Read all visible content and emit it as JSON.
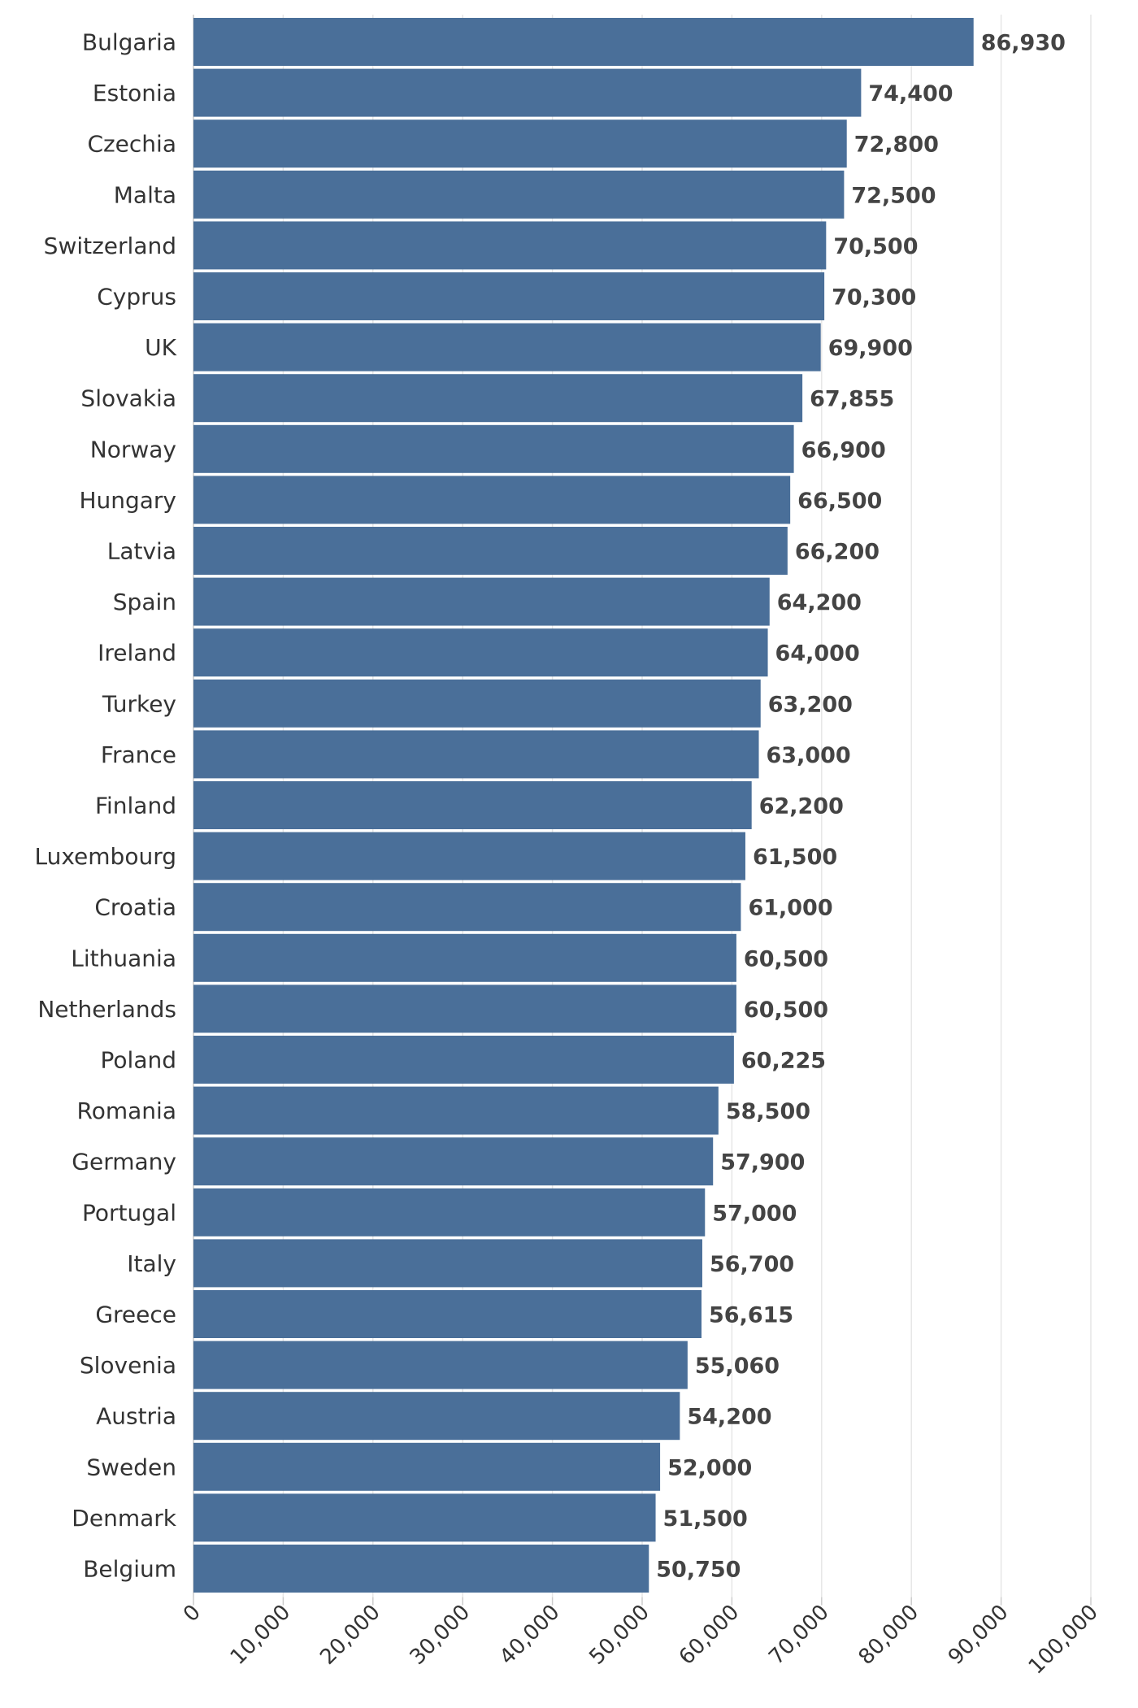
{
  "chart_data": {
    "type": "bar",
    "orientation": "horizontal",
    "title": "",
    "xlabel": "",
    "ylabel": "",
    "xlim": [
      0,
      100000
    ],
    "grid": "vertical",
    "bar_color": "#4a6f99",
    "categories": [
      "Bulgaria",
      "Estonia",
      "Czechia",
      "Malta",
      "Switzerland",
      "Cyprus",
      "UK",
      "Slovakia",
      "Norway",
      "Hungary",
      "Latvia",
      "Spain",
      "Ireland",
      "Turkey",
      "France",
      "Finland",
      "Luxembourg",
      "Croatia",
      "Lithuania",
      "Netherlands",
      "Poland",
      "Romania",
      "Germany",
      "Portugal",
      "Italy",
      "Greece",
      "Slovenia",
      "Austria",
      "Sweden",
      "Denmark",
      "Belgium"
    ],
    "values": [
      86930,
      74400,
      72800,
      72500,
      70500,
      70300,
      69900,
      67855,
      66900,
      66500,
      66200,
      64200,
      64000,
      63200,
      63000,
      62200,
      61500,
      61000,
      60500,
      60500,
      60225,
      58500,
      57900,
      57000,
      56700,
      56615,
      55060,
      54200,
      52000,
      51500,
      50750
    ],
    "value_labels": [
      "86,930",
      "74,400",
      "72,800",
      "72,500",
      "70,500",
      "70,300",
      "69,900",
      "67,855",
      "66,900",
      "66,500",
      "66,200",
      "64,200",
      "64,000",
      "63,200",
      "63,000",
      "62,200",
      "61,500",
      "61,000",
      "60,500",
      "60,500",
      "60,225",
      "58,500",
      "57,900",
      "57,000",
      "56,700",
      "56,615",
      "55,060",
      "54,200",
      "52,000",
      "51,500",
      "50,750"
    ],
    "x_ticks": [
      0,
      10000,
      20000,
      30000,
      40000,
      50000,
      60000,
      70000,
      80000,
      90000,
      100000
    ],
    "x_tick_labels": [
      "0",
      "10,000",
      "20,000",
      "30,000",
      "40,000",
      "50,000",
      "60,000",
      "70,000",
      "80,000",
      "90,000",
      "100,000"
    ]
  }
}
